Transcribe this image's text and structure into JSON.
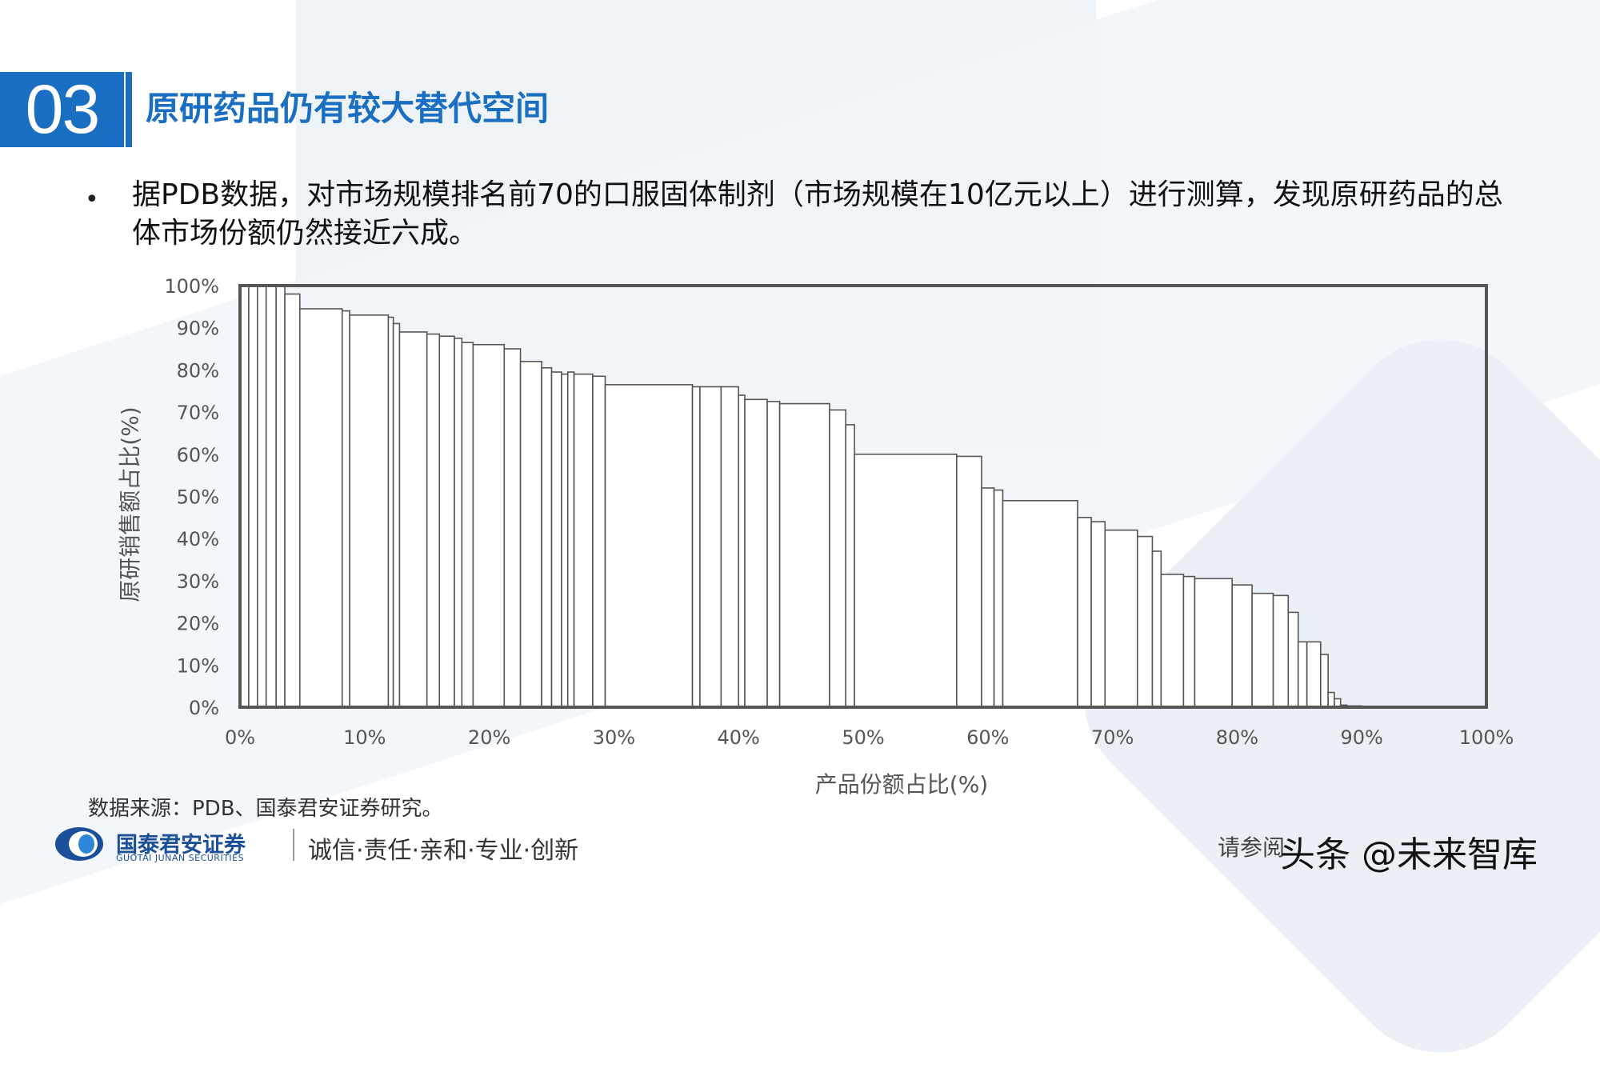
{
  "section": {
    "number": "03",
    "title": "原研药品仍有较大替代空间"
  },
  "bullet": {
    "text": "据PDB数据，对市场规模排名前70的口服固体制剂（市场规模在10亿元以上）进行测算，发现原研药品的总体市场份额仍然接近六成。"
  },
  "chart_data": {
    "type": "bar",
    "variant": "variable-width step bars",
    "xlabel": "产品份额占比(%)",
    "ylabel": "原研销售额占比(%)",
    "xlim": [
      0,
      100
    ],
    "ylim": [
      0,
      100
    ],
    "x_ticks": [
      "0%",
      "10%",
      "20%",
      "30%",
      "40%",
      "50%",
      "60%",
      "70%",
      "80%",
      "90%",
      "100%"
    ],
    "y_ticks": [
      "0%",
      "10%",
      "20%",
      "30%",
      "40%",
      "50%",
      "60%",
      "70%",
      "80%",
      "90%",
      "100%"
    ],
    "grid": false,
    "bars": [
      {
        "x0": 0.0,
        "x1": 0.7,
        "y": 100
      },
      {
        "x0": 0.7,
        "x1": 1.4,
        "y": 100
      },
      {
        "x0": 1.4,
        "x1": 2.1,
        "y": 100
      },
      {
        "x0": 2.1,
        "x1": 2.9,
        "y": 100
      },
      {
        "x0": 2.9,
        "x1": 3.6,
        "y": 100
      },
      {
        "x0": 3.6,
        "x1": 4.8,
        "y": 98
      },
      {
        "x0": 4.8,
        "x1": 8.2,
        "y": 94.5
      },
      {
        "x0": 8.2,
        "x1": 8.8,
        "y": 94
      },
      {
        "x0": 8.8,
        "x1": 11.9,
        "y": 93
      },
      {
        "x0": 11.9,
        "x1": 12.3,
        "y": 92.5
      },
      {
        "x0": 12.3,
        "x1": 12.8,
        "y": 91
      },
      {
        "x0": 12.8,
        "x1": 15.0,
        "y": 89
      },
      {
        "x0": 15.0,
        "x1": 16.0,
        "y": 88.5
      },
      {
        "x0": 16.0,
        "x1": 17.2,
        "y": 88
      },
      {
        "x0": 17.2,
        "x1": 17.8,
        "y": 87.5
      },
      {
        "x0": 17.8,
        "x1": 18.7,
        "y": 86.5
      },
      {
        "x0": 18.7,
        "x1": 21.2,
        "y": 86
      },
      {
        "x0": 21.2,
        "x1": 22.5,
        "y": 85
      },
      {
        "x0": 22.5,
        "x1": 24.2,
        "y": 82
      },
      {
        "x0": 24.2,
        "x1": 25.0,
        "y": 80.5
      },
      {
        "x0": 25.0,
        "x1": 25.8,
        "y": 79.5
      },
      {
        "x0": 25.8,
        "x1": 26.3,
        "y": 79
      },
      {
        "x0": 26.3,
        "x1": 26.8,
        "y": 79.5
      },
      {
        "x0": 26.8,
        "x1": 28.3,
        "y": 79
      },
      {
        "x0": 28.3,
        "x1": 29.3,
        "y": 78.5
      },
      {
        "x0": 29.3,
        "x1": 36.3,
        "y": 76.5
      },
      {
        "x0": 36.3,
        "x1": 36.9,
        "y": 76
      },
      {
        "x0": 36.9,
        "x1": 38.6,
        "y": 76
      },
      {
        "x0": 38.6,
        "x1": 40.0,
        "y": 76
      },
      {
        "x0": 40.0,
        "x1": 40.5,
        "y": 74
      },
      {
        "x0": 40.5,
        "x1": 42.3,
        "y": 73
      },
      {
        "x0": 42.3,
        "x1": 43.3,
        "y": 72.5
      },
      {
        "x0": 43.3,
        "x1": 47.3,
        "y": 72
      },
      {
        "x0": 47.3,
        "x1": 48.6,
        "y": 70.5
      },
      {
        "x0": 48.6,
        "x1": 49.3,
        "y": 67
      },
      {
        "x0": 49.3,
        "x1": 57.5,
        "y": 60
      },
      {
        "x0": 57.5,
        "x1": 59.5,
        "y": 59.5
      },
      {
        "x0": 59.5,
        "x1": 60.5,
        "y": 52
      },
      {
        "x0": 60.5,
        "x1": 61.2,
        "y": 51.5
      },
      {
        "x0": 61.2,
        "x1": 67.2,
        "y": 49
      },
      {
        "x0": 67.2,
        "x1": 68.3,
        "y": 45
      },
      {
        "x0": 68.3,
        "x1": 69.4,
        "y": 44
      },
      {
        "x0": 69.4,
        "x1": 72.0,
        "y": 42
      },
      {
        "x0": 72.0,
        "x1": 73.2,
        "y": 40.5
      },
      {
        "x0": 73.2,
        "x1": 73.9,
        "y": 37
      },
      {
        "x0": 73.9,
        "x1": 75.7,
        "y": 31.5
      },
      {
        "x0": 75.7,
        "x1": 76.6,
        "y": 31
      },
      {
        "x0": 76.6,
        "x1": 79.6,
        "y": 30.5
      },
      {
        "x0": 79.6,
        "x1": 81.2,
        "y": 29
      },
      {
        "x0": 81.2,
        "x1": 82.9,
        "y": 27
      },
      {
        "x0": 82.9,
        "x1": 84.1,
        "y": 26.5
      },
      {
        "x0": 84.1,
        "x1": 84.9,
        "y": 22.5
      },
      {
        "x0": 84.9,
        "x1": 85.6,
        "y": 15.5
      },
      {
        "x0": 85.6,
        "x1": 86.7,
        "y": 15.5
      },
      {
        "x0": 86.7,
        "x1": 87.3,
        "y": 12.5
      },
      {
        "x0": 87.3,
        "x1": 87.8,
        "y": 3.5
      },
      {
        "x0": 87.8,
        "x1": 88.3,
        "y": 2
      },
      {
        "x0": 88.3,
        "x1": 88.8,
        "y": 0.5
      },
      {
        "x0": 88.8,
        "x1": 90.0,
        "y": 0.3
      }
    ]
  },
  "footer": {
    "source": "数据来源：PDB、国泰君安证券研究。",
    "company_cn": "国泰君安证券",
    "company_en": "GUOTAI JUNAN SECURITIES",
    "slogan": "诚信·责任·亲和·专业·创新",
    "disclaimer": "请参阅",
    "watermark": "头条 @未来智库"
  },
  "colors": {
    "brand_blue": "#1b6fc2",
    "logo_blue": "#1b4f9a",
    "plot_frame": "#555555",
    "bar_stroke": "#555555"
  }
}
